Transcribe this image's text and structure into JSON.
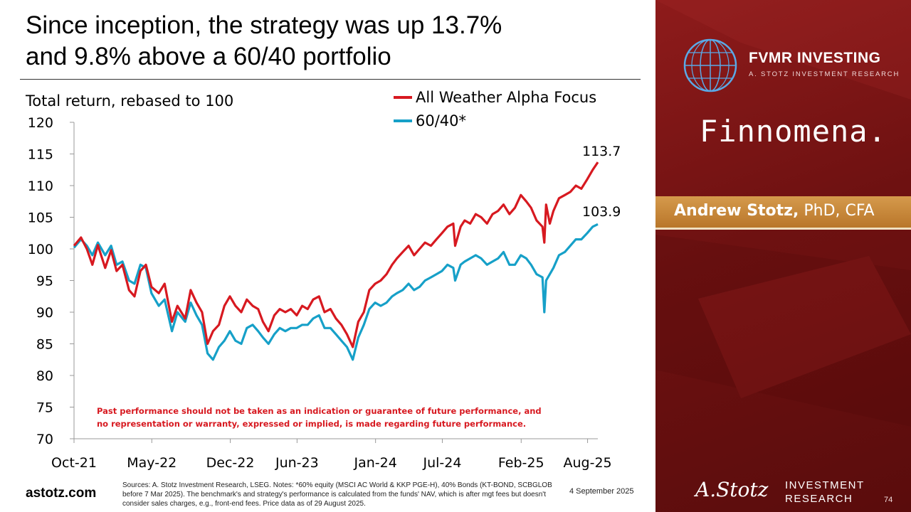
{
  "slide": {
    "title_line1": "Since inception, the strategy was up 13.7%",
    "title_line2": "and 9.8% above a 60/40 portfolio",
    "footer_site": "astotz.com",
    "footer_notes": "Sources: A. Stotz Investment Research, LSEG. Notes: *60% equity (MSCI AC World & KKP PGE-H), 40% Bonds (KT-BOND, SCBGLOB before 7 Mar 2025). The benchmark's and strategy's performance is calculated from the funds' NAV, which is after mgt fees but doesn't consider sales charges, e.g., front-end fees. Price data as of 29 August 2025.",
    "date": "4 September 2025",
    "page_number": "74"
  },
  "sidebar": {
    "brand_name": "FVMR INVESTING",
    "brand_sub": "A. STOTZ INVESTMENT RESEARCH",
    "partner": "Finnomena.",
    "author_name": "Andrew Stotz,",
    "author_credentials": " PhD, CFA",
    "logo_signature": "A.Stotz",
    "logo_line1": "INVESTMENT",
    "logo_line2": "RESEARCH",
    "colors": {
      "panel": "#7a1414",
      "band": "#c98a3c"
    }
  },
  "chart_data": {
    "type": "line",
    "ylabel": "Total return, rebased to 100",
    "ylim": [
      70,
      120
    ],
    "yticks": [
      120,
      115,
      110,
      105,
      100,
      95,
      90,
      85,
      80,
      75,
      70
    ],
    "xlim": [
      "2021-10-01",
      "2025-08-29"
    ],
    "xticks": [
      {
        "label": "Oct-21",
        "date": "2021-10-01"
      },
      {
        "label": "May-22",
        "date": "2022-05-01"
      },
      {
        "label": "Dec-22",
        "date": "2022-12-01"
      },
      {
        "label": "Jun-23",
        "date": "2023-06-01"
      },
      {
        "label": "Jan-24",
        "date": "2024-01-01"
      },
      {
        "label": "Jul-24",
        "date": "2024-07-01"
      },
      {
        "label": "Feb-25",
        "date": "2025-02-01"
      },
      {
        "label": "Aug-25",
        "date": "2025-08-01"
      }
    ],
    "disclaimer_line1": "Past performance should not be taken as an indication or guarantee of future performance, and",
    "disclaimer_line2": "no representation or warranty, expressed or implied, is made regarding future performance.",
    "series": [
      {
        "name": "All Weather Alpha Focus",
        "color": "#d71920",
        "end_label": "113.7",
        "points": [
          [
            "2021-10-01",
            100.5
          ],
          [
            "2021-10-20",
            101.8
          ],
          [
            "2021-11-05",
            100.0
          ],
          [
            "2021-11-20",
            97.5
          ],
          [
            "2021-12-05",
            100.6
          ],
          [
            "2021-12-25",
            97.0
          ],
          [
            "2022-01-10",
            99.8
          ],
          [
            "2022-01-25",
            96.5
          ],
          [
            "2022-02-10",
            97.5
          ],
          [
            "2022-02-28",
            93.5
          ],
          [
            "2022-03-15",
            92.5
          ],
          [
            "2022-03-31",
            96.5
          ],
          [
            "2022-04-15",
            97.5
          ],
          [
            "2022-04-30",
            94.0
          ],
          [
            "2022-05-20",
            93.0
          ],
          [
            "2022-06-05",
            94.5
          ],
          [
            "2022-06-25",
            88.5
          ],
          [
            "2022-07-10",
            91.0
          ],
          [
            "2022-07-31",
            89.0
          ],
          [
            "2022-08-15",
            93.5
          ],
          [
            "2022-08-31",
            91.5
          ],
          [
            "2022-09-15",
            90.0
          ],
          [
            "2022-09-30",
            85.0
          ],
          [
            "2022-10-15",
            87.0
          ],
          [
            "2022-10-31",
            88.0
          ],
          [
            "2022-11-15",
            91.0
          ],
          [
            "2022-11-30",
            92.5
          ],
          [
            "2022-12-15",
            91.0
          ],
          [
            "2022-12-31",
            90.0
          ],
          [
            "2023-01-15",
            92.0
          ],
          [
            "2023-01-31",
            91.0
          ],
          [
            "2023-02-15",
            90.5
          ],
          [
            "2023-02-28",
            88.5
          ],
          [
            "2023-03-15",
            87.0
          ],
          [
            "2023-03-31",
            89.5
          ],
          [
            "2023-04-15",
            90.5
          ],
          [
            "2023-04-30",
            90.0
          ],
          [
            "2023-05-15",
            90.5
          ],
          [
            "2023-05-31",
            89.5
          ],
          [
            "2023-06-15",
            91.0
          ],
          [
            "2023-06-30",
            90.5
          ],
          [
            "2023-07-15",
            92.0
          ],
          [
            "2023-07-31",
            92.5
          ],
          [
            "2023-08-15",
            90.0
          ],
          [
            "2023-08-31",
            90.5
          ],
          [
            "2023-09-15",
            89.0
          ],
          [
            "2023-09-30",
            88.0
          ],
          [
            "2023-10-15",
            86.5
          ],
          [
            "2023-10-31",
            84.5
          ],
          [
            "2023-11-15",
            88.5
          ],
          [
            "2023-11-30",
            90.0
          ],
          [
            "2023-12-15",
            93.5
          ],
          [
            "2023-12-31",
            94.5
          ],
          [
            "2024-01-15",
            95.0
          ],
          [
            "2024-01-31",
            96.0
          ],
          [
            "2024-02-15",
            97.5
          ],
          [
            "2024-02-28",
            98.5
          ],
          [
            "2024-03-15",
            99.5
          ],
          [
            "2024-03-31",
            100.5
          ],
          [
            "2024-04-15",
            99.0
          ],
          [
            "2024-04-30",
            100.0
          ],
          [
            "2024-05-15",
            101.0
          ],
          [
            "2024-05-31",
            100.5
          ],
          [
            "2024-06-15",
            101.5
          ],
          [
            "2024-06-30",
            102.5
          ],
          [
            "2024-07-15",
            103.5
          ],
          [
            "2024-07-31",
            104.0
          ],
          [
            "2024-08-05",
            100.5
          ],
          [
            "2024-08-20",
            103.5
          ],
          [
            "2024-08-31",
            104.5
          ],
          [
            "2024-09-15",
            104.0
          ],
          [
            "2024-09-30",
            105.5
          ],
          [
            "2024-10-15",
            105.0
          ],
          [
            "2024-10-31",
            104.0
          ],
          [
            "2024-11-15",
            105.5
          ],
          [
            "2024-11-30",
            106.0
          ],
          [
            "2024-12-15",
            107.0
          ],
          [
            "2024-12-31",
            105.5
          ],
          [
            "2025-01-15",
            106.5
          ],
          [
            "2025-01-31",
            108.5
          ],
          [
            "2025-02-15",
            107.5
          ],
          [
            "2025-02-28",
            106.5
          ],
          [
            "2025-03-15",
            104.5
          ],
          [
            "2025-03-31",
            103.5
          ],
          [
            "2025-04-05",
            101.0
          ],
          [
            "2025-04-10",
            107.0
          ],
          [
            "2025-04-20",
            104.0
          ],
          [
            "2025-04-30",
            106.0
          ],
          [
            "2025-05-15",
            108.0
          ],
          [
            "2025-05-31",
            108.5
          ],
          [
            "2025-06-15",
            109.0
          ],
          [
            "2025-06-30",
            110.0
          ],
          [
            "2025-07-15",
            109.5
          ],
          [
            "2025-07-31",
            111.0
          ],
          [
            "2025-08-15",
            112.5
          ],
          [
            "2025-08-29",
            113.7
          ]
        ]
      },
      {
        "name": "60/40*",
        "color": "#16a0c8",
        "end_label": "103.9",
        "points": [
          [
            "2021-10-01",
            100.2
          ],
          [
            "2021-10-20",
            101.5
          ],
          [
            "2021-11-05",
            100.5
          ],
          [
            "2021-11-20",
            99.0
          ],
          [
            "2021-12-05",
            101.0
          ],
          [
            "2021-12-25",
            99.0
          ],
          [
            "2022-01-10",
            100.5
          ],
          [
            "2022-01-25",
            97.5
          ],
          [
            "2022-02-10",
            98.0
          ],
          [
            "2022-02-28",
            95.0
          ],
          [
            "2022-03-15",
            94.5
          ],
          [
            "2022-03-31",
            97.5
          ],
          [
            "2022-04-15",
            97.0
          ],
          [
            "2022-04-30",
            93.0
          ],
          [
            "2022-05-20",
            91.0
          ],
          [
            "2022-06-05",
            92.0
          ],
          [
            "2022-06-25",
            87.0
          ],
          [
            "2022-07-10",
            90.0
          ],
          [
            "2022-07-31",
            88.5
          ],
          [
            "2022-08-15",
            91.5
          ],
          [
            "2022-08-31",
            89.5
          ],
          [
            "2022-09-15",
            88.0
          ],
          [
            "2022-09-30",
            83.5
          ],
          [
            "2022-10-15",
            82.5
          ],
          [
            "2022-10-31",
            84.5
          ],
          [
            "2022-11-15",
            85.5
          ],
          [
            "2022-11-30",
            87.0
          ],
          [
            "2022-12-15",
            85.5
          ],
          [
            "2022-12-31",
            85.0
          ],
          [
            "2023-01-15",
            87.5
          ],
          [
            "2023-01-31",
            88.0
          ],
          [
            "2023-02-15",
            87.0
          ],
          [
            "2023-02-28",
            86.0
          ],
          [
            "2023-03-15",
            85.0
          ],
          [
            "2023-03-31",
            86.5
          ],
          [
            "2023-04-15",
            87.5
          ],
          [
            "2023-04-30",
            87.0
          ],
          [
            "2023-05-15",
            87.5
          ],
          [
            "2023-05-31",
            87.5
          ],
          [
            "2023-06-15",
            88.0
          ],
          [
            "2023-06-30",
            88.0
          ],
          [
            "2023-07-15",
            89.0
          ],
          [
            "2023-07-31",
            89.5
          ],
          [
            "2023-08-15",
            87.5
          ],
          [
            "2023-08-31",
            87.5
          ],
          [
            "2023-09-15",
            86.5
          ],
          [
            "2023-09-30",
            85.5
          ],
          [
            "2023-10-15",
            84.5
          ],
          [
            "2023-10-31",
            82.5
          ],
          [
            "2023-11-15",
            86.0
          ],
          [
            "2023-11-30",
            88.0
          ],
          [
            "2023-12-15",
            90.5
          ],
          [
            "2023-12-31",
            91.5
          ],
          [
            "2024-01-15",
            91.0
          ],
          [
            "2024-01-31",
            91.5
          ],
          [
            "2024-02-15",
            92.5
          ],
          [
            "2024-02-28",
            93.0
          ],
          [
            "2024-03-15",
            93.5
          ],
          [
            "2024-03-31",
            94.5
          ],
          [
            "2024-04-15",
            93.5
          ],
          [
            "2024-04-30",
            94.0
          ],
          [
            "2024-05-15",
            95.0
          ],
          [
            "2024-05-31",
            95.5
          ],
          [
            "2024-06-15",
            96.0
          ],
          [
            "2024-06-30",
            96.5
          ],
          [
            "2024-07-15",
            97.5
          ],
          [
            "2024-07-31",
            97.0
          ],
          [
            "2024-08-05",
            95.0
          ],
          [
            "2024-08-20",
            97.5
          ],
          [
            "2024-08-31",
            98.0
          ],
          [
            "2024-09-15",
            98.5
          ],
          [
            "2024-09-30",
            99.0
          ],
          [
            "2024-10-15",
            98.5
          ],
          [
            "2024-10-31",
            97.5
          ],
          [
            "2024-11-15",
            98.0
          ],
          [
            "2024-11-30",
            98.5
          ],
          [
            "2024-12-15",
            99.5
          ],
          [
            "2024-12-31",
            97.5
          ],
          [
            "2025-01-15",
            97.5
          ],
          [
            "2025-01-31",
            99.0
          ],
          [
            "2025-02-15",
            98.5
          ],
          [
            "2025-02-28",
            97.5
          ],
          [
            "2025-03-15",
            96.0
          ],
          [
            "2025-03-31",
            95.5
          ],
          [
            "2025-04-05",
            90.0
          ],
          [
            "2025-04-10",
            95.0
          ],
          [
            "2025-04-20",
            96.0
          ],
          [
            "2025-04-30",
            97.0
          ],
          [
            "2025-05-15",
            99.0
          ],
          [
            "2025-05-31",
            99.5
          ],
          [
            "2025-06-15",
            100.5
          ],
          [
            "2025-06-30",
            101.5
          ],
          [
            "2025-07-15",
            101.5
          ],
          [
            "2025-07-31",
            102.5
          ],
          [
            "2025-08-15",
            103.5
          ],
          [
            "2025-08-29",
            103.9
          ]
        ]
      }
    ]
  }
}
